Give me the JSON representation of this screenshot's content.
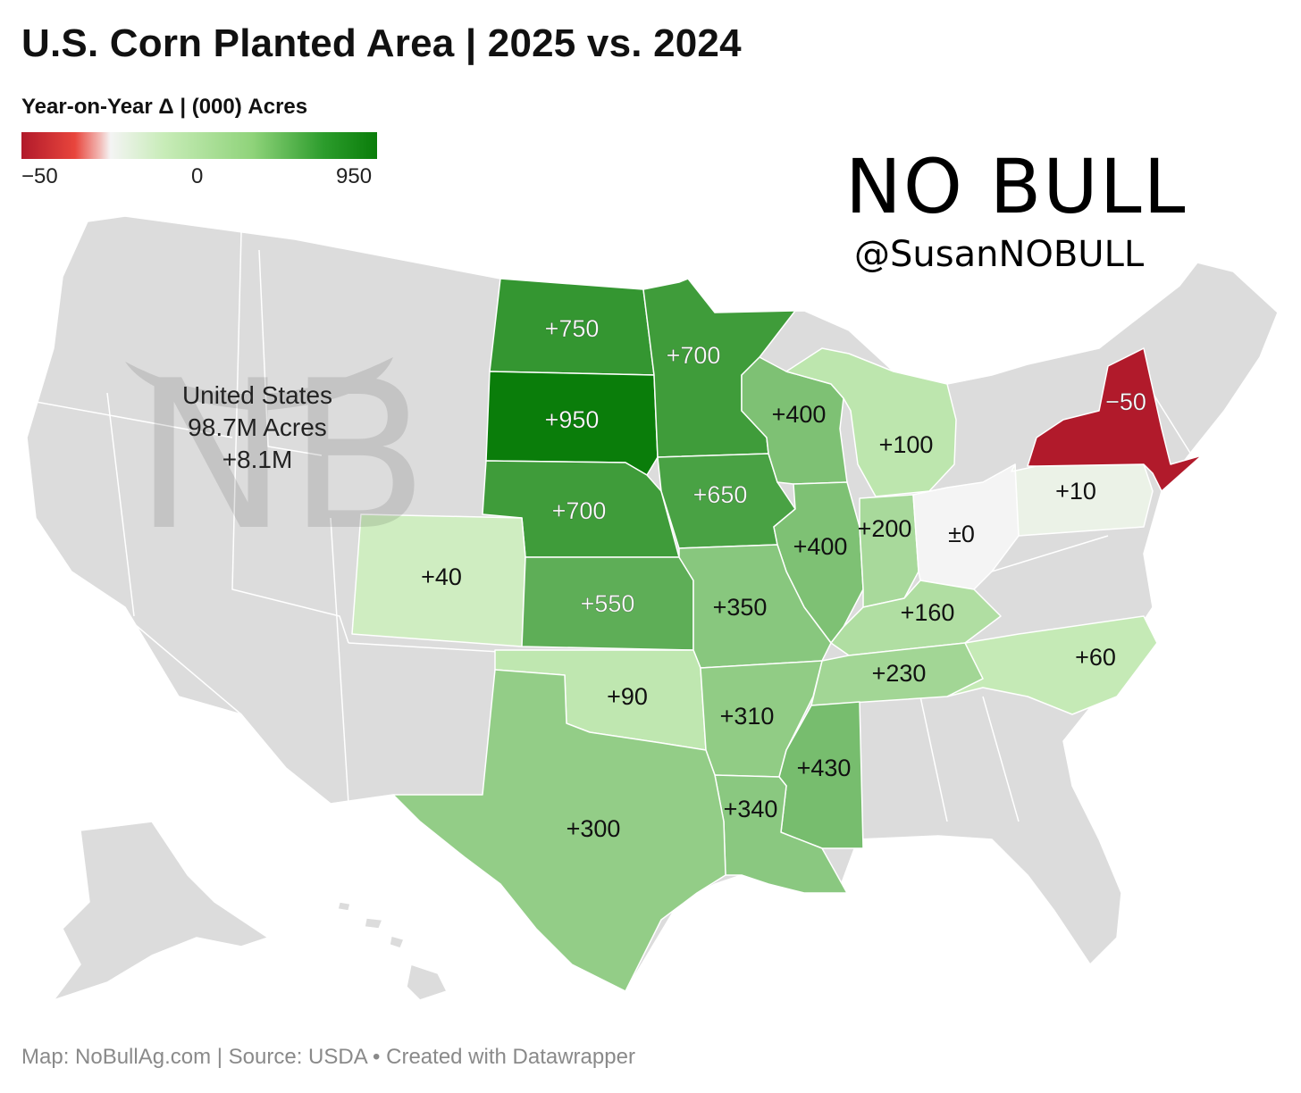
{
  "title": "U.S. Corn Planted Area | 2025 vs. 2024",
  "legend": {
    "title": "Year-on-Year Δ | (000) Acres",
    "min_label": "−50",
    "mid_label": "0",
    "max_label": "950",
    "colors": [
      "#b11a2b",
      "#f4f4f4",
      "#0a7d0a"
    ]
  },
  "logo": {
    "text": "NO BULL",
    "handle": "@SusanNOBULL"
  },
  "national": {
    "name": "United States",
    "total": "98.7M Acres",
    "change": "+8.1M"
  },
  "states": [
    {
      "name": "North Dakota",
      "label": "+750",
      "value": 750
    },
    {
      "name": "Minnesota",
      "label": "+700",
      "value": 700
    },
    {
      "name": "South Dakota",
      "label": "+950",
      "value": 950
    },
    {
      "name": "Nebraska",
      "label": "+700",
      "value": 700
    },
    {
      "name": "Iowa",
      "label": "+650",
      "value": 650
    },
    {
      "name": "Wisconsin",
      "label": "+400",
      "value": 400
    },
    {
      "name": "Michigan",
      "label": "+100",
      "value": 100
    },
    {
      "name": "New York",
      "label": "−50",
      "value": -50
    },
    {
      "name": "Pennsylvania",
      "label": "+10",
      "value": 10
    },
    {
      "name": "Ohio",
      "label": "±0",
      "value": 0
    },
    {
      "name": "Indiana",
      "label": "+200",
      "value": 200
    },
    {
      "name": "Illinois",
      "label": "+400",
      "value": 400
    },
    {
      "name": "Colorado",
      "label": "+40",
      "value": 40
    },
    {
      "name": "Kansas",
      "label": "+550",
      "value": 550
    },
    {
      "name": "Missouri",
      "label": "+350",
      "value": 350
    },
    {
      "name": "Kentucky",
      "label": "+160",
      "value": 160
    },
    {
      "name": "Tennessee",
      "label": "+230",
      "value": 230
    },
    {
      "name": "North Carolina",
      "label": "+60",
      "value": 60
    },
    {
      "name": "Oklahoma",
      "label": "+90",
      "value": 90
    },
    {
      "name": "Arkansas",
      "label": "+310",
      "value": 310
    },
    {
      "name": "Mississippi",
      "label": "+430",
      "value": 430
    },
    {
      "name": "Louisiana",
      "label": "+340",
      "value": 340
    },
    {
      "name": "Texas",
      "label": "+300",
      "value": 300
    }
  ],
  "footer": "Map: NoBullAg.com | Source: USDA • Created with Datawrapper"
}
